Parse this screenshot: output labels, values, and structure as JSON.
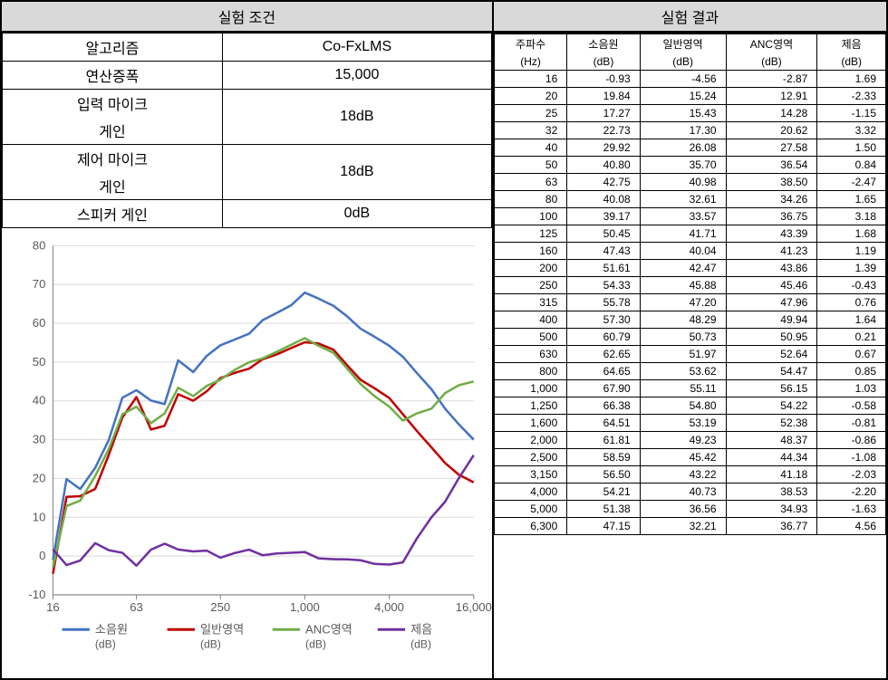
{
  "headers": {
    "left": "실험 조건",
    "right": "실험 결과"
  },
  "conditions": {
    "rows": [
      {
        "label": "알고리즘",
        "value": "Co-FxLMS"
      },
      {
        "label": "연산증폭",
        "value": "15,000"
      },
      {
        "label": "입력 마이크\n게인",
        "value": "18dB"
      },
      {
        "label": "제어 마이크\n게인",
        "value": "18dB"
      },
      {
        "label": "스피커 게인",
        "value": "0dB"
      }
    ]
  },
  "chart": {
    "type": "line",
    "ylim": [
      -10,
      80
    ],
    "ytick_step": 10,
    "xticks": [
      16,
      63,
      250,
      1000,
      4000,
      16000
    ],
    "xtick_labels": [
      "16",
      "63",
      "250",
      "1,000",
      "4,000",
      "16,000"
    ],
    "background_color": "#ffffff",
    "grid_color": "#d9d9d9",
    "line_width": 2.5,
    "series": [
      {
        "name": "소음원",
        "sub": "(dB)",
        "color": "#4472c4"
      },
      {
        "name": "일반영역",
        "sub": "(dB)",
        "color": "#c00000"
      },
      {
        "name": "ANC영역",
        "sub": "(dB)",
        "color": "#70ad47"
      },
      {
        "name": "제음",
        "sub": "(dB)",
        "color": "#7030a0"
      }
    ]
  },
  "results": {
    "columns": [
      {
        "l1": "주파수",
        "l2": "(Hz)"
      },
      {
        "l1": "소음원",
        "l2": "(dB)"
      },
      {
        "l1": "일반영역",
        "l2": "(dB)"
      },
      {
        "l1": "ANC영역",
        "l2": "(dB)"
      },
      {
        "l1": "제음",
        "l2": "(dB)"
      }
    ],
    "rows": [
      [
        "16",
        "-0.93",
        "-4.56",
        "-2.87",
        "1.69"
      ],
      [
        "20",
        "19.84",
        "15.24",
        "12.91",
        "-2.33"
      ],
      [
        "25",
        "17.27",
        "15.43",
        "14.28",
        "-1.15"
      ],
      [
        "32",
        "22.73",
        "17.30",
        "20.62",
        "3.32"
      ],
      [
        "40",
        "29.92",
        "26.08",
        "27.58",
        "1.50"
      ],
      [
        "50",
        "40.80",
        "35.70",
        "36.54",
        "0.84"
      ],
      [
        "63",
        "42.75",
        "40.98",
        "38.50",
        "-2.47"
      ],
      [
        "80",
        "40.08",
        "32.61",
        "34.26",
        "1.65"
      ],
      [
        "100",
        "39.17",
        "33.57",
        "36.75",
        "3.18"
      ],
      [
        "125",
        "50.45",
        "41.71",
        "43.39",
        "1.68"
      ],
      [
        "160",
        "47.43",
        "40.04",
        "41.23",
        "1.19"
      ],
      [
        "200",
        "51.61",
        "42.47",
        "43.86",
        "1.39"
      ],
      [
        "250",
        "54.33",
        "45.88",
        "45.46",
        "-0.43"
      ],
      [
        "315",
        "55.78",
        "47.20",
        "47.96",
        "0.76"
      ],
      [
        "400",
        "57.30",
        "48.29",
        "49.94",
        "1.64"
      ],
      [
        "500",
        "60.79",
        "50.73",
        "50.95",
        "0.21"
      ],
      [
        "630",
        "62.65",
        "51.97",
        "52.64",
        "0.67"
      ],
      [
        "800",
        "64.65",
        "53.62",
        "54.47",
        "0.85"
      ],
      [
        "1,000",
        "67.90",
        "55.11",
        "56.15",
        "1.03"
      ],
      [
        "1,250",
        "66.38",
        "54.80",
        "54.22",
        "-0.58"
      ],
      [
        "1,600",
        "64.51",
        "53.19",
        "52.38",
        "-0.81"
      ],
      [
        "2,000",
        "61.81",
        "49.23",
        "48.37",
        "-0.86"
      ],
      [
        "2,500",
        "58.59",
        "45.42",
        "44.34",
        "-1.08"
      ],
      [
        "3,150",
        "56.50",
        "43.22",
        "41.18",
        "-2.03"
      ],
      [
        "4,000",
        "54.21",
        "40.73",
        "38.53",
        "-2.20"
      ],
      [
        "5,000",
        "51.38",
        "36.56",
        "34.93",
        "-1.63"
      ],
      [
        "6,300",
        "47.15",
        "32.21",
        "36.77",
        "4.56"
      ]
    ]
  }
}
